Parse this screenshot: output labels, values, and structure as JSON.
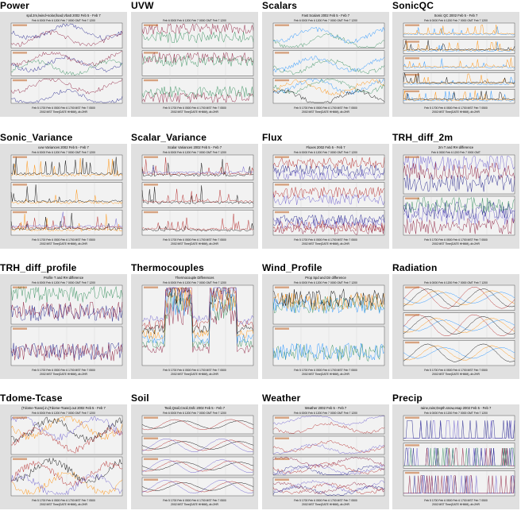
{
  "page": {
    "colors": {
      "bg": "#ffffff",
      "thumb_bg": "#e0e0e0",
      "panel_bg": "#f2f2f2",
      "grid": "#c8c8c8",
      "series": [
        "#1f1f8a",
        "#8b1a3a",
        "#2e8b57",
        "#1e90ff",
        "#ff8c00",
        "#000000",
        "#b22222",
        "#6a5acd"
      ]
    }
  },
  "thumbnails": [
    {
      "title": "Power",
      "figtitle": "spd.2m,lwind+solar,lload,Vbatt 2002 Feb 5 - Feb 7",
      "panels": 3,
      "style": "mixed",
      "xtop": "Feb 6 0000   Feb 6 1200   Feb 7 0000 GMT   Feb 7 1200",
      "xbot": "Feb 5 1700   Feb 6 0500   Feb 6 1700 MST   Feb 7 0500",
      "xlabel": "2002 MST   Time(DATE HHMM), dt=2HR"
    },
    {
      "title": "UVW",
      "figtitle": "",
      "panels": 3,
      "style": "noisy",
      "xtop": "Feb 6 0000   Feb 6 1200   Feb 7 0000 GMT   Feb 7 1200",
      "xbot": "Feb 5 1700   Feb 6 0500   Feb 6 1700 MST   Feb 7 0500",
      "xlabel": "2002 MST   Time(DATE HHMM), dt=2HR"
    },
    {
      "title": "Scalars",
      "figtitle": "Fast Scalars 2002 Feb 5 - Feb 7",
      "panels": 3,
      "style": "mixed",
      "xtop": "Feb 6 0000   Feb 6 1200   Feb 7 0000 GMT   Feb 7 1200",
      "xbot": "Feb 5 1700   Feb 6 0500   Feb 6 1700 MST   Feb 7 0500",
      "xlabel": "2002 MST   Time(DATE HHMM), dt=2HR"
    },
    {
      "title": "SonicQC",
      "figtitle": "Sonic QC 2002 Feb 5 - Feb 7",
      "panels": 5,
      "style": "spiky",
      "xtop": "Feb 6 0000   Feb 6 1200   Feb 7 0000 GMT   Feb 7 1200",
      "xbot": "Feb 5 1700   Feb 6 0500   Feb 6 1700 MST   Feb 7 0500",
      "xlabel": "2002 MST   Time(DATE HHMM), dt=2HR"
    },
    {
      "title": "Sonic_Variance",
      "figtitle": "uvw Variances 2002 Feb 5 - Feb 7",
      "panels": 3,
      "style": "spiky",
      "xtop": "Feb 6 0000   Feb 6 1200   Feb 7 0000 GMT   Feb 7 1200",
      "xbot": "Feb 5 1700   Feb 6 0500   Feb 6 1700 MST   Feb 7 0500",
      "xlabel": "2002 MST   Time(DATE HHMM), dt=2HR"
    },
    {
      "title": "Scalar_Variance",
      "figtitle": "Scalar Variances 2002 Feb 5 - Feb 7",
      "panels": 3,
      "style": "spiky",
      "xtop": "Feb 6 0000   Feb 6 1200   Feb 7 0000 GMT   Feb 7 1200",
      "xbot": "Feb 5 1700   Feb 6 0500   Feb 6 1700 MST   Feb 7 0500",
      "xlabel": "2002 MST   Time(DATE HHMM), dt=2HR"
    },
    {
      "title": "Flux",
      "figtitle": "Fluxes 2002 Feb 5 - Feb 7",
      "panels": 3,
      "style": "noisy",
      "xtop": "Feb 6 0000   Feb 6 1200   Feb 7 0000 GMT   Feb 7 1200",
      "xbot": "Feb 5 1700   Feb 6 0500   Feb 6 1700 MST   Feb 7 0500",
      "xlabel": "2002 MST   Time(DATE HHMM), dt=2HR"
    },
    {
      "title": "TRH_diff_2m",
      "figtitle": "2m T and RH difference",
      "panels": 2,
      "style": "noisy",
      "xtop": "Feb 6 0000   Feb 6 1200   Feb 7 0000 GMT",
      "xbot": "Feb 5 1700   Feb 6 0500   Feb 6 1700 MST   Feb 7 0500",
      "xlabel": "2002 MST   Time(DATE HHMM), dt=2HR"
    },
    {
      "title": "TRH_diff_profile",
      "figtitle": "Profile T and RH difference",
      "panels": 2,
      "style": "noisy",
      "xtop": "Feb 6 0000   Feb 6 1200   Feb 7 0000 GMT   Feb 7 1200",
      "xbot": "Feb 5 1700   Feb 6 0500   Feb 6 1700 MST   Feb 7 0500",
      "xlabel": "2002 MST   Time(DATE HHMM), dt=2HR"
    },
    {
      "title": "Thermocouples",
      "figtitle": "Thermocouple Differences",
      "panels": 1,
      "style": "thermo",
      "xtop": "Feb 6 0000   Feb 6 1200   Feb 7 0000 GMT   Feb 7 1200",
      "xbot": "Feb 5 1700   Feb 6 0500   Feb 6 1700 MST   Feb 7 0500",
      "xlabel": "2002 MST   Time(DATE HHMM), dt=2HR"
    },
    {
      "title": "Wind_Profile",
      "figtitle": "Prop Spd and Dir difference",
      "panels": 2,
      "style": "noisy",
      "xtop": "Feb 6 0000   Feb 6 1200   Feb 7 0000 GMT   Feb 7 1200",
      "xbot": "Feb 5 1700   Feb 6 0500   Feb 6 1700 MST   Feb 7 0500",
      "xlabel": "2002 MST   Time(DATE HHMM), dt=2HR"
    },
    {
      "title": "Radiation",
      "figtitle": "",
      "panels": 3,
      "style": "smooth",
      "xtop": "Feb 6 0000   Feb 6 1200   Feb 7 0000 GMT   Feb 7 1200",
      "xbot": "Feb 5 1700   Feb 6 0500   Feb 6 1700 MST   Feb 7 0500",
      "xlabel": "2002 MST   Time(DATE HHMM), dt=2HR"
    },
    {
      "title": "Tdome-Tcase",
      "figtitle": "(Tdome-Tcase).in,(Tdome-Tcase).out 2002 Feb 5 - Feb 7",
      "panels": 2,
      "style": "mixed",
      "xtop": "Feb 6 0000   Feb 6 1200   Feb 7 0000 GMT   Feb 7 1200",
      "xbot": "Feb 5 1700   Feb 6 0500   Feb 6 1700 MST   Feb 7 0500",
      "xlabel": "2002 MST   Time(DATE HHMM), dt=2HR"
    },
    {
      "title": "Soil",
      "figtitle": "Tsoil,Qsoil,Csoil,Gsfc 2002 Feb 5 - Feb 7",
      "panels": 4,
      "style": "smooth",
      "xtop": "Feb 6 0000   Feb 6 1200   Feb 7 0000 GMT   Feb 7 1200",
      "xbot": "Feb 5 1700   Feb 6 0500   Feb 6 1700 MST   Feb 7 0500",
      "xlabel": "2002 MST   Time(DATE HHMM), dt=2HR"
    },
    {
      "title": "Weather",
      "figtitle": "Weather 2002 Feb 5 - Feb 7",
      "panels": 4,
      "style": "mixed",
      "xtop": "Feb 6 0000   Feb 6 1200   Feb 7 0000 GMT   Feb 7 1200",
      "xbot": "Feb 5 1700   Feb 6 0500   Feb 6 1700 MST   Feb 7 0500",
      "xlabel": "2002 MST   Time(DATE HHMM), dt=2HR"
    },
    {
      "title": "Precip",
      "figtitle": "raine,rainr,Depth.snow,esap 2002 Feb 5 - Feb 7",
      "panels": 3,
      "style": "precip",
      "xtop": "Feb 6 0000   Feb 6 1200   Feb 7 0000 GMT   Feb 7 1200",
      "xbot": "Feb 5 1700   Feb 6 0500   Feb 6 1700 MST   Feb 7 0500",
      "xlabel": "2002 MST   Time(DATE HHMM), dt=2HR"
    }
  ]
}
